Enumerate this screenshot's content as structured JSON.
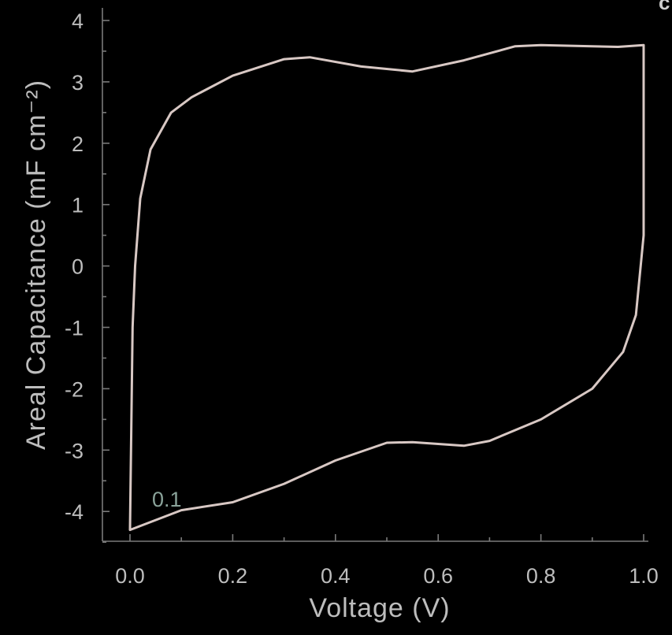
{
  "chart_data": {
    "type": "line",
    "panel_label": "c",
    "xlabel": "Voltage (V)",
    "ylabel": "Areal Capacitance (mF cm⁻²)",
    "xlim": [
      -0.05,
      1.0
    ],
    "ylim": [
      -4.5,
      4.2
    ],
    "x_ticks": [
      "0.0",
      "0.2",
      "0.4",
      "0.6",
      "0.8",
      "1.0"
    ],
    "y_ticks": [
      "4",
      "3",
      "2",
      "1",
      "0",
      "-1",
      "-2",
      "-3",
      "-4"
    ],
    "grid": false,
    "annotation": "0.1",
    "series": [
      {
        "color": "#d8c8c4",
        "points": [
          [
            0.0,
            -4.3
          ],
          [
            0.005,
            -1.0
          ],
          [
            0.01,
            0.0
          ],
          [
            0.02,
            1.1
          ],
          [
            0.04,
            1.9
          ],
          [
            0.08,
            2.5
          ],
          [
            0.12,
            2.75
          ],
          [
            0.2,
            3.1
          ],
          [
            0.3,
            3.37
          ],
          [
            0.35,
            3.4
          ],
          [
            0.45,
            3.25
          ],
          [
            0.55,
            3.17
          ],
          [
            0.65,
            3.35
          ],
          [
            0.75,
            3.58
          ],
          [
            0.8,
            3.6
          ],
          [
            0.9,
            3.58
          ],
          [
            0.95,
            3.57
          ],
          [
            1.0,
            3.6
          ],
          [
            1.0,
            0.5
          ],
          [
            0.985,
            -0.8
          ],
          [
            0.96,
            -1.4
          ],
          [
            0.9,
            -2.0
          ],
          [
            0.8,
            -2.5
          ],
          [
            0.7,
            -2.85
          ],
          [
            0.65,
            -2.93
          ],
          [
            0.55,
            -2.87
          ],
          [
            0.5,
            -2.88
          ],
          [
            0.4,
            -3.17
          ],
          [
            0.3,
            -3.55
          ],
          [
            0.2,
            -3.85
          ],
          [
            0.1,
            -3.98
          ],
          [
            0.0,
            -4.3
          ]
        ]
      }
    ]
  }
}
